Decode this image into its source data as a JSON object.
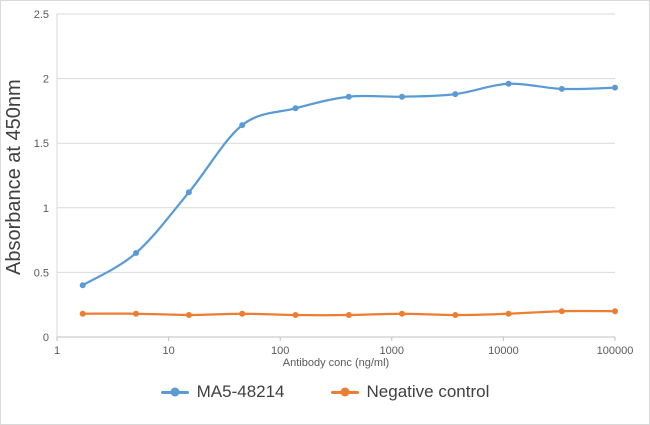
{
  "chart_data": {
    "type": "line",
    "title": "",
    "xlabel": "Antibody conc (ng/ml)",
    "ylabel": "Absorbance at 450nm",
    "x_scale": "log",
    "xlim": [
      1,
      100000
    ],
    "ylim": [
      0,
      2.5
    ],
    "x_ticks": [
      1,
      10,
      100,
      1000,
      10000,
      100000
    ],
    "y_ticks": [
      0,
      0.5,
      1,
      1.5,
      2,
      2.5
    ],
    "grid": "horizontal",
    "legend_position": "bottom",
    "x": [
      1.7,
      5.1,
      15.2,
      45.7,
      137,
      412,
      1235,
      3704,
      11111,
      33333,
      100000
    ],
    "series": [
      {
        "name": "MA5-48214",
        "color": "#5B9BD5",
        "values": [
          0.4,
          0.65,
          1.12,
          1.64,
          1.77,
          1.86,
          1.86,
          1.88,
          1.96,
          1.92,
          1.93
        ]
      },
      {
        "name": "Negative control",
        "color": "#ED7D31",
        "values": [
          0.18,
          0.18,
          0.17,
          0.18,
          0.17,
          0.17,
          0.18,
          0.17,
          0.18,
          0.2,
          0.2
        ]
      }
    ],
    "colors": {
      "gridline": "#D9D9D9",
      "axis_line": "#BFBFBF",
      "tick_text": "#595959",
      "title_text": "#404040"
    }
  }
}
